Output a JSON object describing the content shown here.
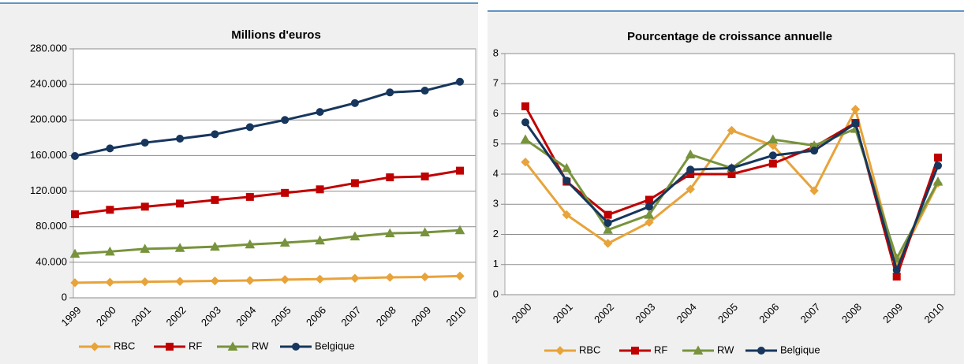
{
  "chart_data": [
    {
      "type": "line",
      "title": "Millions d'euros",
      "categories": [
        "1999",
        "2000",
        "2001",
        "2002",
        "2003",
        "2004",
        "2005",
        "2006",
        "2007",
        "2008",
        "2009",
        "2010"
      ],
      "ylim": [
        0,
        280000
      ],
      "yticks": [
        0,
        {
          "value": 40000,
          "label": "40.000"
        },
        {
          "value": 80000,
          "label": "80.000"
        },
        {
          "value": 120000,
          "label": "120.000"
        },
        {
          "value": 160000,
          "label": "160.000"
        },
        {
          "value": 200000,
          "label": "200.000"
        },
        {
          "value": 240000,
          "label": "240.000"
        },
        {
          "value": 280000,
          "label": "280.000"
        }
      ],
      "grid": true,
      "legend": "bottom",
      "series": [
        {
          "name": "RBC",
          "color": "#e8a33a",
          "marker": "diamond",
          "values": [
            17000,
            17500,
            18000,
            18500,
            19000,
            19500,
            20500,
            21000,
            22000,
            23000,
            23500,
            24500
          ]
        },
        {
          "name": "RF",
          "color": "#c00000",
          "marker": "square",
          "values": [
            94000,
            99000,
            102500,
            106000,
            110000,
            113500,
            118000,
            122000,
            129000,
            135500,
            136500,
            143000
          ]
        },
        {
          "name": "RW",
          "color": "#77933c",
          "marker": "triangle",
          "values": [
            49500,
            52000,
            55000,
            56000,
            57500,
            60000,
            62000,
            64500,
            69000,
            72500,
            73500,
            76000
          ]
        },
        {
          "name": "Belgique",
          "color": "#17365d",
          "marker": "circle",
          "values": [
            159500,
            168000,
            174500,
            179000,
            184000,
            192000,
            200000,
            209000,
            219000,
            231000,
            233000,
            243000
          ]
        }
      ]
    },
    {
      "type": "line",
      "title": "Pourcentage de croissance annuelle",
      "categories": [
        "2000",
        "2001",
        "2002",
        "2003",
        "2004",
        "2005",
        "2006",
        "2007",
        "2008",
        "2009",
        "2010"
      ],
      "ylim": [
        0,
        8
      ],
      "yticks": [
        0,
        1,
        2,
        3,
        4,
        5,
        6,
        7,
        8
      ],
      "grid": true,
      "legend": "bottom",
      "series": [
        {
          "name": "RBC",
          "color": "#e8a33a",
          "marker": "diamond",
          "values": [
            4.4,
            2.65,
            1.7,
            2.4,
            3.5,
            5.45,
            4.95,
            3.45,
            6.15,
            1.0,
            3.7
          ]
        },
        {
          "name": "RF",
          "color": "#c00000",
          "marker": "square",
          "values": [
            6.25,
            3.75,
            2.65,
            3.15,
            4.0,
            4.0,
            4.35,
            4.9,
            5.7,
            0.6,
            4.55
          ]
        },
        {
          "name": "RW",
          "color": "#77933c",
          "marker": "triangle",
          "values": [
            5.15,
            4.2,
            2.15,
            2.65,
            4.65,
            4.2,
            5.15,
            4.95,
            5.5,
            1.2,
            3.75
          ]
        },
        {
          "name": "Belgique",
          "color": "#17365d",
          "marker": "circle",
          "values": [
            5.72,
            3.78,
            2.38,
            2.92,
            4.15,
            4.2,
            4.62,
            4.78,
            5.68,
            0.82,
            4.28
          ]
        }
      ]
    }
  ]
}
